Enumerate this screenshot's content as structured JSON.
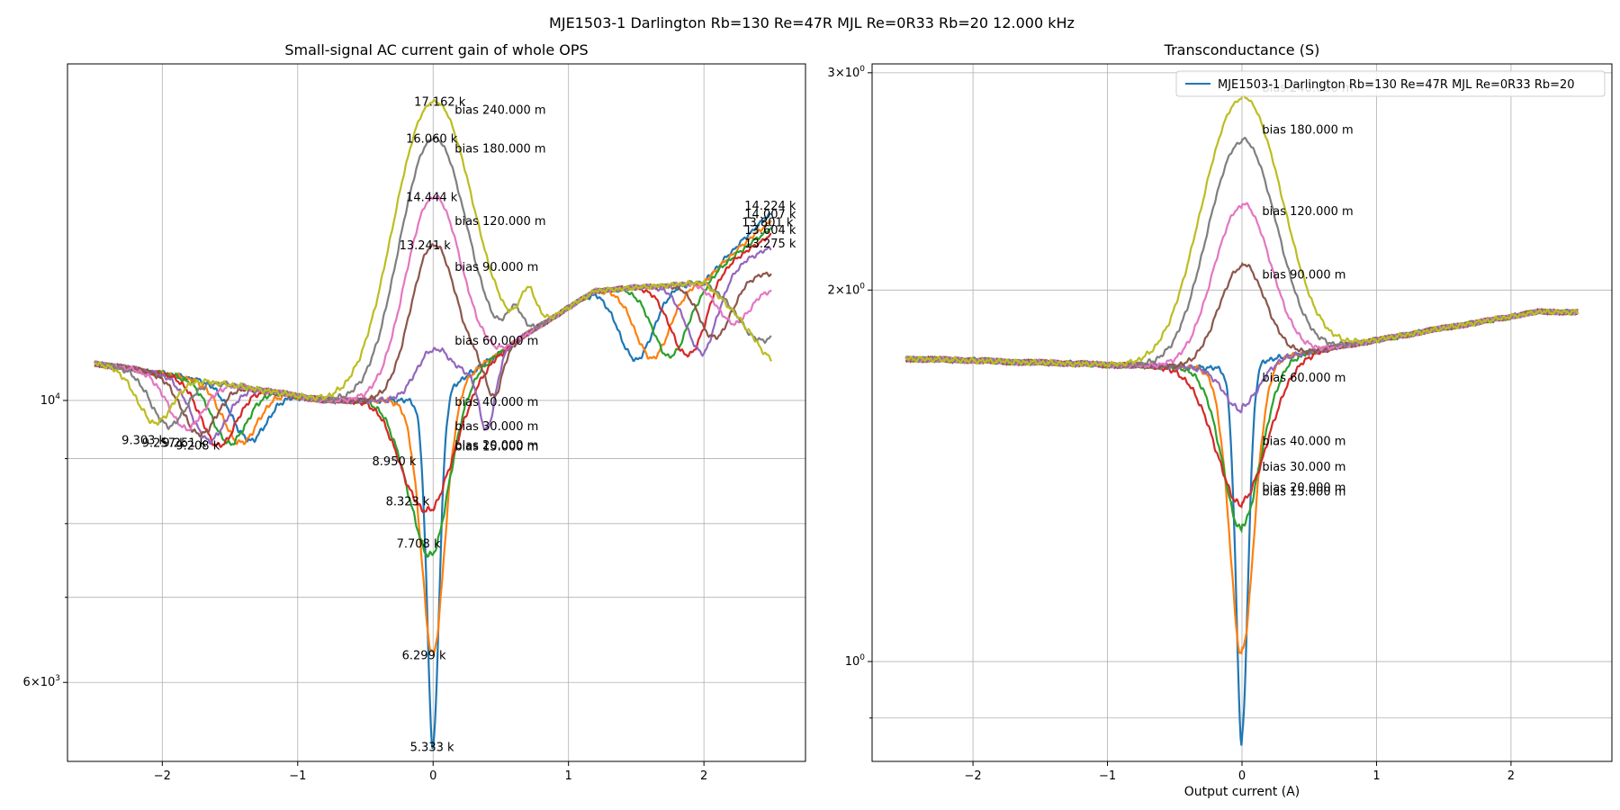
{
  "suptitle": "MJE1503-1 Darlington Rb=130 Re=47R MJL Re=0R33 Rb=20 12.000 kHz",
  "colors": [
    "#1f77b4",
    "#ff7f0e",
    "#2ca02c",
    "#d62728",
    "#9467bd",
    "#8c564b",
    "#e377c2",
    "#7f7f7f",
    "#bcbd22"
  ],
  "chart_data": [
    {
      "type": "line",
      "title": "Small-signal AC current gain of whole OPS",
      "xlabel": "",
      "ylabel": "",
      "xlim": [
        -2.7,
        2.75
      ],
      "ylim": [
        5200,
        18400
      ],
      "yscale": "log",
      "grid": true,
      "xticks": [
        -2,
        -1,
        0,
        1,
        2
      ],
      "xtick_labels": [
        "−2",
        "−1",
        "0",
        "1",
        "2"
      ],
      "yticks_major": [
        {
          "value": 10000,
          "base": "10",
          "exp": "4",
          "coef": ""
        },
        {
          "value": 6000,
          "base": "10",
          "exp": "3",
          "coef": "6"
        }
      ],
      "yticks_minor": [
        7000,
        8000,
        9000
      ],
      "series": [
        {
          "bias": 15,
          "min": 5333,
          "max": 14224,
          "center_val": 5333,
          "dip_x": null,
          "dip_val": null,
          "minL": 9303,
          "minL_x": -1.35,
          "end_val": 14224
        },
        {
          "bias": 20,
          "min": 6299,
          "max": 14007,
          "center_val": 6299,
          "dip_x": null,
          "dip_val": null,
          "minL": 9257,
          "minL_x": -1.42,
          "end_val": 14007
        },
        {
          "bias": 30,
          "min": 7708,
          "max": 13801,
          "center_val": 7708,
          "dip_x": null,
          "dip_val": null,
          "minL": 9251,
          "minL_x": -1.5,
          "end_val": 13801
        },
        {
          "bias": 40,
          "min": 8323,
          "max": 13604,
          "center_val": 8323,
          "dip_x": null,
          "dip_val": null,
          "minL": 9208,
          "minL_x": -1.58,
          "end_val": 13604
        },
        {
          "bias": 60,
          "min": 8950,
          "max": 13275,
          "center_val": 10950,
          "dip_x": 0.4,
          "dip_val": 9750,
          "minL": 9300,
          "minL_x": -1.65,
          "end_val": 13275
        },
        {
          "bias": 90,
          "min": 9350,
          "max": 13241,
          "center_val": 13241,
          "dip_x": 0.45,
          "dip_val": 10200,
          "minL": 9400,
          "minL_x": -1.72,
          "end_val": 12600
        },
        {
          "bias": 120,
          "min": 9400,
          "max": 14444,
          "center_val": 14444,
          "dip_x": 0.5,
          "dip_val": 10950,
          "minL": 9500,
          "minL_x": -1.82,
          "end_val": 12200
        },
        {
          "bias": 180,
          "min": 9450,
          "max": 16060,
          "center_val": 16060,
          "dip_x": 0.6,
          "dip_val": 11600,
          "minL": 9550,
          "minL_x": -1.95,
          "end_val": 11200
        },
        {
          "bias": 240,
          "min": 9500,
          "max": 17162,
          "center_val": 17162,
          "dip_x": 0.7,
          "dip_val": 11800,
          "minL": 9600,
          "minL_x": -2.05,
          "end_val": 10700
        }
      ],
      "series_labels": [
        "bias 15.000 m",
        "bias 20.000 m",
        "bias 30.000 m",
        "bias 40.000 m",
        "bias 60.000 m",
        "bias 90.000 m",
        "bias 120.000 m",
        "bias 180.000 m",
        "bias 240.000 m"
      ],
      "label_positions": [
        {
          "text": "bias 15.000 m",
          "x": 0.16,
          "y": 9210
        },
        {
          "text": "bias 20.000 m",
          "x": 0.16,
          "y": 9230
        },
        {
          "text": "bias 30.000 m",
          "x": 0.16,
          "y": 9550
        },
        {
          "text": "bias 40.000 m",
          "x": 0.16,
          "y": 9980
        },
        {
          "text": "bias 60.000 m",
          "x": 0.16,
          "y": 11150
        },
        {
          "text": "bias 90.000 m",
          "x": 0.16,
          "y": 12750
        },
        {
          "text": "bias 120.000 m",
          "x": 0.16,
          "y": 13850
        },
        {
          "text": "bias 180.000 m",
          "x": 0.16,
          "y": 15800
        },
        {
          "text": "bias 240.000 m",
          "x": 0.16,
          "y": 16950
        }
      ],
      "min_labels": [
        {
          "text": "5.333 k",
          "x": -0.17,
          "y": 5333
        },
        {
          "text": "6.299 k",
          "x": -0.23,
          "y": 6299
        },
        {
          "text": "7.708 k",
          "x": -0.27,
          "y": 7708
        },
        {
          "text": "8.323 k",
          "x": -0.35,
          "y": 8323
        },
        {
          "text": "8.950 k",
          "x": -0.45,
          "y": 8950
        },
        {
          "text": "9.303 k",
          "x": -2.3,
          "y": 9303
        },
        {
          "text": "9.257 k",
          "x": -2.15,
          "y": 9257
        },
        {
          "text": "9.251 k",
          "x": -2.0,
          "y": 9251
        },
        {
          "text": "9.208 k",
          "x": -1.9,
          "y": 9208
        }
      ],
      "max_labels": [
        {
          "text": "17.162 k",
          "x": -0.14,
          "y": 17162
        },
        {
          "text": "16.060 k",
          "x": -0.2,
          "y": 16060
        },
        {
          "text": "14.444 k",
          "x": -0.2,
          "y": 14444
        },
        {
          "text": "13.241 k",
          "x": -0.25,
          "y": 13241
        },
        {
          "text": "14.224 k",
          "x": 2.3,
          "y": 14224
        },
        {
          "text": "14.007 k",
          "x": 2.3,
          "y": 14007
        },
        {
          "text": "13.801 k",
          "x": 2.28,
          "y": 13801
        },
        {
          "text": "13.604 k",
          "x": 2.3,
          "y": 13604
        },
        {
          "text": "13.275 k",
          "x": 2.3,
          "y": 13275
        }
      ]
    },
    {
      "type": "line",
      "title": "Transconductance (S)",
      "xlabel": "Output current (A)",
      "ylabel": "",
      "xlim": [
        -2.75,
        2.75
      ],
      "ylim": [
        0.83,
        3.05
      ],
      "yscale": "log",
      "grid": true,
      "xticks": [
        -2,
        -1,
        0,
        1,
        2
      ],
      "xtick_labels": [
        "−2",
        "−1",
        "0",
        "1",
        "2"
      ],
      "yticks_major": [
        {
          "value": 1,
          "base": "10",
          "exp": "0",
          "coef": ""
        },
        {
          "value": 2,
          "base": "10",
          "exp": "0",
          "coef": "2"
        },
        {
          "value": 3,
          "base": "10",
          "exp": "0",
          "coef": "3"
        }
      ],
      "yticks_minor": [
        0.9
      ],
      "series": [
        {
          "bias": 15,
          "center_val": 0.87,
          "flat_left": 1.76,
          "flat_right": 1.93
        },
        {
          "bias": 20,
          "center_val": 1.02,
          "flat_left": 1.76,
          "flat_right": 1.93
        },
        {
          "bias": 30,
          "center_val": 1.29,
          "flat_left": 1.76,
          "flat_right": 1.93
        },
        {
          "bias": 40,
          "center_val": 1.35,
          "flat_left": 1.76,
          "flat_right": 1.93
        },
        {
          "bias": 60,
          "center_val": 1.61,
          "flat_left": 1.76,
          "flat_right": 1.93
        },
        {
          "bias": 90,
          "center_val": 2.1,
          "flat_left": 1.76,
          "flat_right": 1.93
        },
        {
          "bias": 120,
          "center_val": 2.35,
          "flat_left": 1.76,
          "flat_right": 1.93
        },
        {
          "bias": 180,
          "center_val": 2.65,
          "flat_left": 1.76,
          "flat_right": 1.93
        },
        {
          "bias": 240,
          "center_val": 2.87,
          "flat_left": 1.76,
          "flat_right": 1.93
        }
      ],
      "series_labels": [
        "bias 15.000 m",
        "bias 20.000 m",
        "bias 30.000 m",
        "bias 40.000 m",
        "bias 60.000 m",
        "bias 90.000 m",
        "bias 120.000 m",
        "bias 180.000 m",
        "bias 240.000 m"
      ],
      "label_positions": [
        {
          "text": "bias 15.000 m",
          "x": 0.15,
          "y": 1.375
        },
        {
          "text": "bias 20.000 m",
          "x": 0.15,
          "y": 1.385
        },
        {
          "text": "bias 30.000 m",
          "x": 0.15,
          "y": 1.44
        },
        {
          "text": "bias 40.000 m",
          "x": 0.15,
          "y": 1.51
        },
        {
          "text": "bias 60.000 m",
          "x": 0.15,
          "y": 1.7
        },
        {
          "text": "bias 90.000 m",
          "x": 0.15,
          "y": 2.06
        },
        {
          "text": "bias 120.000 m",
          "x": 0.15,
          "y": 2.32
        },
        {
          "text": "bias 180.000 m",
          "x": 0.15,
          "y": 2.7
        },
        {
          "text": "bias 240.000 m",
          "x": 0.15,
          "y": 2.92
        }
      ],
      "legend": {
        "location": "upper right",
        "entries": [
          "MJE1503-1 Darlington Rb=130 Re=47R MJL Re=0R33 Rb=20"
        ]
      }
    }
  ]
}
